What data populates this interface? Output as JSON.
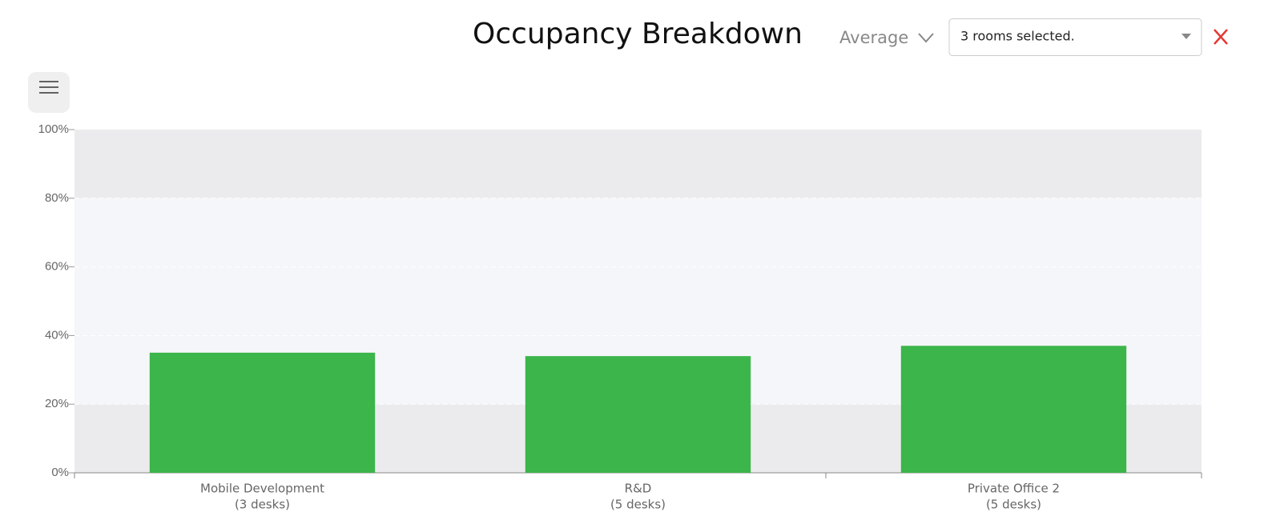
{
  "controls": {
    "aggregation": "Average",
    "room_select": "3 rooms selected."
  },
  "chart_data": {
    "type": "bar",
    "title": "Occupancy Breakdown",
    "categories": [
      "Mobile Development",
      "R&D",
      "Private Office 2"
    ],
    "category_sublabels": [
      "(3 desks)",
      "(5 desks)",
      "(5 desks)"
    ],
    "values": [
      35,
      34,
      37
    ],
    "color": "#3cb54a",
    "ylim": [
      0,
      100
    ],
    "yticks": [
      {
        "value": 0,
        "label": "0%"
      },
      {
        "value": 20,
        "label": "20%"
      },
      {
        "value": 40,
        "label": "40%"
      },
      {
        "value": 60,
        "label": "60%"
      },
      {
        "value": 80,
        "label": "80%"
      },
      {
        "value": 100,
        "label": "100%"
      }
    ],
    "grid": true,
    "plot_bands": [
      {
        "from": 0,
        "to": 20,
        "color": "#ebebed"
      },
      {
        "from": 20,
        "to": 80,
        "color": "#f5f6fa"
      },
      {
        "from": 80,
        "to": 100,
        "color": "#ebebed"
      }
    ]
  }
}
